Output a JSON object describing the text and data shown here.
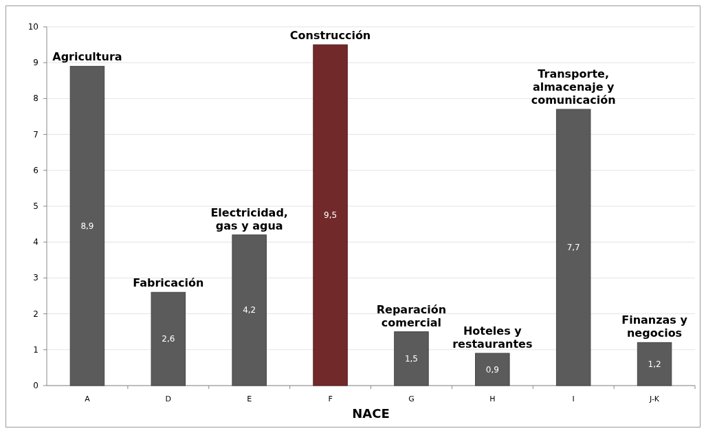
{
  "chart_data": {
    "type": "bar",
    "xlabel": "NACE",
    "categories": [
      "A",
      "D",
      "E",
      "F",
      "G",
      "H",
      "I",
      "J-K"
    ],
    "values": [
      8.9,
      2.6,
      4.2,
      9.5,
      1.5,
      0.9,
      7.7,
      1.2
    ],
    "colors": [
      "#5b5b5b",
      "#5b5b5b",
      "#5b5b5b",
      "#72292a",
      "#5b5b5b",
      "#5b5b5b",
      "#5b5b5b",
      "#5b5b5b"
    ],
    "value_labels": [
      "8,9",
      "2,6",
      "4,2",
      "9,5",
      "1,5",
      "0,9",
      "7,7",
      "1,2"
    ],
    "ylim": [
      0,
      10
    ],
    "yticks": [
      0,
      1,
      2,
      3,
      4,
      5,
      6,
      7,
      8,
      9,
      10
    ],
    "grid": "y",
    "annotations": [
      {
        "text": "Agricultura",
        "x": "A",
        "y": 8.9
      },
      {
        "text": "Fabricación",
        "x": "D",
        "y": 2.6
      },
      {
        "text": "Electricidad,\ngas y agua",
        "x": "E",
        "y": 4.2
      },
      {
        "text": "Construcción",
        "x": "F",
        "y": 9.5
      },
      {
        "text": "Reparación\ncomercial",
        "x": "G",
        "y": 1.5
      },
      {
        "text": "Hoteles y\nrestaurantes",
        "x": "H",
        "y": 0.9
      },
      {
        "text": "Transporte,\nalmacenaje y\ncomunicación",
        "x": "I",
        "y": 7.7
      },
      {
        "text": "Finanzas y\nnegocios",
        "x": "J-K",
        "y": 1.2
      }
    ]
  }
}
